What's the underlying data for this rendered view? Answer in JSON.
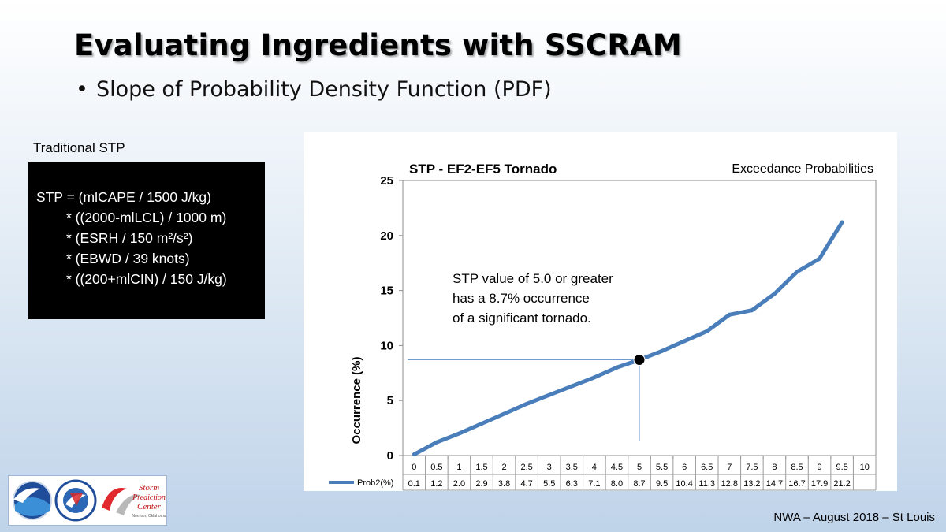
{
  "slide": {
    "title": "Evaluating Ingredients with SSCRAM",
    "bullet": "Slope of Probability Density Function (PDF)",
    "footer": "NWA – August 2018 – St Louis"
  },
  "stp_formula": {
    "caption": "Traditional STP",
    "lines": [
      "STP = (mlCAPE / 1500 J/kg)",
      "* ((2000-mlLCL) / 1000 m)",
      "* (ESRH / 150 m²/s²)",
      "* (EBWD / 39 knots)",
      "* ((200+mlCIN) / 150 J/kg)"
    ]
  },
  "logos": {
    "noaa": "NOAA",
    "nws": "NATIONAL WEATHER SERVICE",
    "spc_line1": "Storm",
    "spc_line2": "Prediction",
    "spc_line3": "Center",
    "spc_line4": "Norman, Oklahoma"
  },
  "chart_data": {
    "type": "line",
    "title": "STP - EF2-EF5 Tornado",
    "subtitle": "Exceedance Probabilities",
    "ylabel": "Occurrence (%)",
    "ylim": [
      0,
      25
    ],
    "yticks": [
      0,
      5,
      10,
      15,
      20,
      25
    ],
    "categories": [
      "0",
      "0.5",
      "1",
      "1.5",
      "2",
      "2.5",
      "3",
      "3.5",
      "4",
      "4.5",
      "5",
      "5.5",
      "6",
      "6.5",
      "7",
      "7.5",
      "8",
      "8.5",
      "9",
      "9.5",
      "10"
    ],
    "series": [
      {
        "name": "Prob2(%)",
        "color": "#4a7ebb",
        "values": [
          0.1,
          1.2,
          2.0,
          2.9,
          3.8,
          4.7,
          5.5,
          6.3,
          7.1,
          8.0,
          8.7,
          9.5,
          10.4,
          11.3,
          12.8,
          13.2,
          14.7,
          16.7,
          17.9,
          21.2,
          null
        ],
        "labels": [
          "0.1",
          "1.2",
          "2.0",
          "2.9",
          "3.8",
          "4.7",
          "5.5",
          "6.3",
          "7.1",
          "8.0",
          "8.7",
          "9.5",
          "10.4",
          "11.3",
          "12.8",
          "13.2",
          "14.7",
          "16.7",
          "17.9",
          "21.2",
          ""
        ]
      }
    ],
    "grid": false,
    "highlight": {
      "x_index": 10,
      "value": 8.7
    },
    "annotation": [
      "STP value of 5.0 or greater",
      "has a 8.7% occurrence",
      "of a significant tornado."
    ]
  }
}
